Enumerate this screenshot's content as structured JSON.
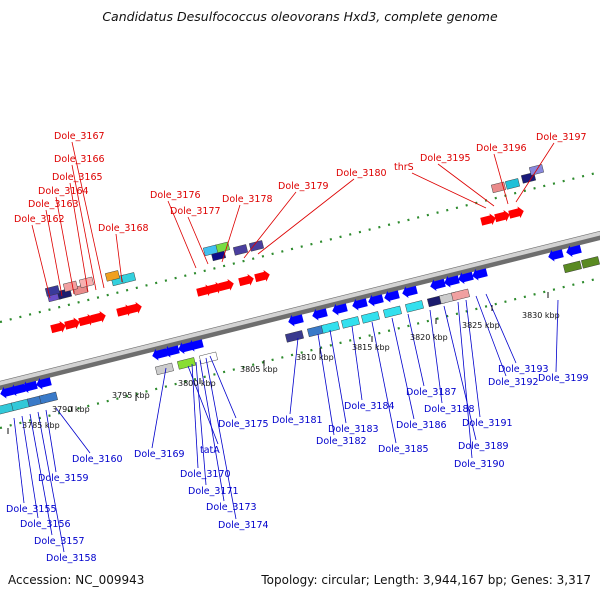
{
  "title": "Candidatus Desulfococcus oleovorans Hxd3, complete genome",
  "footer": {
    "accession": "Accession: NC_009943",
    "summary": "Topology: circular; Length: 3,944,167 bp; Genes: 3,317"
  },
  "colors": {
    "forward_label": "#dd0000",
    "reverse_label": "#0000cc",
    "forward_arrow": "#ff0000",
    "reverse_arrow": "#0000ff",
    "track_dots": "#2e8b2e",
    "backbone": "#9a9a9a"
  },
  "scale": {
    "ticks": [
      {
        "label": "3785 kbp"
      },
      {
        "label": "3790 kbp"
      },
      {
        "label": "3795 kbp"
      },
      {
        "label": "3800 kbp"
      },
      {
        "label": "3805 kbp"
      },
      {
        "label": "3810 kbp"
      },
      {
        "label": "3815 kbp"
      },
      {
        "label": "3820 kbp"
      },
      {
        "label": "3825 kbp"
      },
      {
        "label": "3830 kbp"
      }
    ]
  },
  "genes": {
    "forward": [
      "Dole_3162",
      "Dole_3163",
      "Dole_3164",
      "Dole_3165",
      "Dole_3166",
      "Dole_3167",
      "Dole_3168",
      "Dole_3176",
      "Dole_3177",
      "Dole_3178",
      "Dole_3179",
      "Dole_3180",
      "thrS",
      "Dole_3195",
      "Dole_3196",
      "Dole_3197"
    ],
    "reverse": [
      "Dole_3155",
      "Dole_3156",
      "Dole_3157",
      "Dole_3158",
      "Dole_3159",
      "Dole_3160",
      "Dole_3169",
      "tatA",
      "Dole_3170",
      "Dole_3171",
      "Dole_3173",
      "Dole_3174",
      "Dole_3175",
      "Dole_3181",
      "Dole_3182",
      "Dole_3183",
      "Dole_3184",
      "Dole_3185",
      "Dole_3186",
      "Dole_3187",
      "Dole_3188",
      "Dole_3189",
      "Dole_3190",
      "Dole_3191",
      "Dole_3192",
      "Dole_3193",
      "Dole_3199"
    ]
  }
}
